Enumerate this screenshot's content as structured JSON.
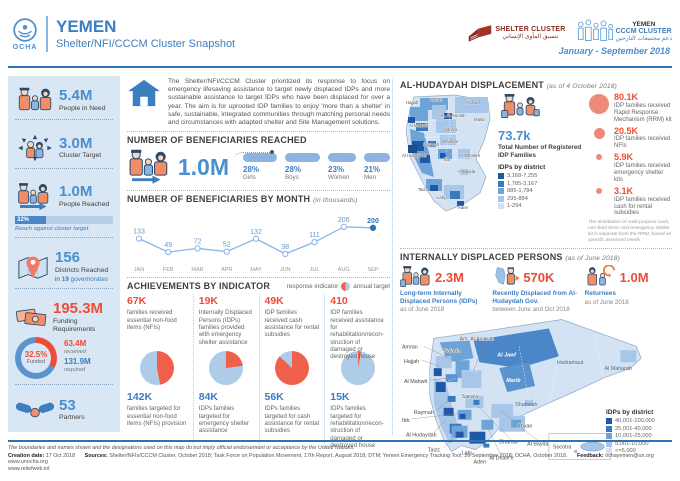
{
  "header": {
    "ocha": "OCHA",
    "title": "YEMEN",
    "subtitle": "Shelter/NFI/CCCM Cluster Snapshot",
    "period": "January - September 2018",
    "shelter": {
      "name": "SHELTER CLUSTER",
      "arabic": "تنسيق المأوى الإنساني"
    },
    "cccm": {
      "country": "YEMEN",
      "name": "CCCM CLUSTER",
      "arabic": "دعم مجتمعات النازحين"
    }
  },
  "sidebar": {
    "need": {
      "value": "5.4M",
      "label": "People in Need"
    },
    "target": {
      "value": "3.0M",
      "label": "Cluster Target"
    },
    "reached": {
      "value": "1.0M",
      "label": "People Reached",
      "pct": 32,
      "pct_label": "32%",
      "note": "Reach against cluster target"
    },
    "districts": {
      "value": "156",
      "label": "Districts Reached",
      "sub_pre": "in",
      "sub_num": "19",
      "sub_post": "governorates"
    },
    "funding": {
      "value": "195.3M",
      "label": "Funding Requirements",
      "pct": 32.5,
      "pct_label": "32.5%",
      "funded_label": "Funded",
      "received": "63.4M",
      "received_label": "received",
      "required": "131.9M",
      "required_label": "required"
    },
    "partners": {
      "value": "53",
      "label": "Partners"
    }
  },
  "intro": {
    "text": "The Shelter/NFI/CCCM Cluster prioritized its response to focus on emergency lifesaving assistance to target newly displaced IDPs and more sustainable assistance to target IDPs who have been displaced for over a year. The aim is for uprooted IDP families to enjoy 'more than a shelter' in safe, sustainable, integrated communities through matching personal needs and circumstances with adapted shelter and Site Management solutions."
  },
  "reached": {
    "title": "NUMBER OF BENEFICIARIES REACHED",
    "total": "1.0M",
    "groups": [
      {
        "pct": "28%",
        "label": "Girls",
        "w": 34
      },
      {
        "pct": "28%",
        "label": "Boys",
        "w": 35
      },
      {
        "pct": "23%",
        "label": "Women",
        "w": 28
      },
      {
        "pct": "21%",
        "label": "Men",
        "w": 26
      }
    ]
  },
  "by_month": {
    "title": "NUMBER OF BENEFICIARIES BY MONTH",
    "note": "(in thousands)"
  },
  "achievements": {
    "title": "ACHIEVEMENTS BY INDICATOR",
    "legend_left": "response indicator",
    "legend_right": "annual target",
    "indicators": [
      {
        "reached": "67K",
        "reached_desc": "families received essential non-food items (NFIs)",
        "pie_pct": 47,
        "target": "142K",
        "target_desc": "families targeted for essential non-food items (NFIs) provision"
      },
      {
        "reached": "19K",
        "reached_desc": "Internally Displaced Persons (IDPs) families provided with emergency shelter assistance",
        "pie_pct": 23,
        "target": "84K",
        "target_desc": "IDPs families targeted for emergency shelter assistance"
      },
      {
        "reached": "49K",
        "reached_desc": "IDP families received cash assistance for rental subsidies",
        "pie_pct": 87,
        "target": "56K",
        "target_desc": "IDPs families targeted for cash assistance for rental subsidies"
      },
      {
        "reached": "410",
        "reached_desc": "IDP families received assistance for rehabilitation/recon-struction of damaged or destroyed house",
        "pie_pct": 3,
        "target": "15K",
        "target_desc": "IDPs families targeted for rehabilitation/recon-struction of damaged or destroyed house"
      }
    ]
  },
  "hudaydah": {
    "title": "AL-HUDAYDAH DISPLACEMENT",
    "note": "(as of 4 October 2018)",
    "total_value": "73.7k",
    "total_label": "Total Number of Registered IDP Families",
    "legend_title": "IDPs by district",
    "legend": [
      {
        "range": "3,168-7,255"
      },
      {
        "range": "1,785-3,167"
      },
      {
        "range": "885-1,784"
      },
      {
        "range": "295-884"
      },
      {
        "range": "1-294"
      }
    ],
    "stats": [
      {
        "value": "80.1K",
        "desc": "IDP families received Rapid Response Mechanism (RRM) kit",
        "size": 20
      },
      {
        "value": "20.5K",
        "desc": "IDP families received NFIs",
        "size": 11
      },
      {
        "value": "5.9K",
        "desc": "IDP families received emergency shelter kits",
        "size": 6
      },
      {
        "value": "3.1K",
        "desc": "IDP families received cash for rental subsidies",
        "size": 6
      }
    ],
    "footnote": "The distribution of multi-purpose cash, non-food items and emergency shelter kit is separate from the RRM, based on specific assessed needs.",
    "map_labels": [
      "Amran",
      "Hajjah",
      "Al Jawf",
      "Am. Al Asimah",
      "Marib",
      "Al Mahwit",
      "Sana'a",
      "Raymah",
      "Dhamar",
      "Al Hudaydah",
      "Al Dhale'e",
      "Ibb",
      "Al Bayda",
      "Taizz",
      "Lahj",
      "Aden"
    ]
  },
  "idps": {
    "title": "INTERNALLY DISPLACED PERSONS",
    "note": "(as of June 2018)",
    "items": [
      {
        "value": "2.3M",
        "label": "Long-term Internally Displaced Persons (IDPs)",
        "sub": "as of June 2018"
      },
      {
        "value": "570K",
        "label": "Recently Displaced from Al-Hudaydah Gov.",
        "sub": "between June and Oct 2018"
      },
      {
        "value": "1.0M",
        "label": "Returnees",
        "sub": "as of June 2018"
      }
    ]
  },
  "big_map": {
    "legend_title": "IDPs by district",
    "legend": [
      {
        "range": "40,001-100,000"
      },
      {
        "range": "25,001-40,000"
      },
      {
        "range": "10,001-25,000"
      },
      {
        "range": "5,001-10,000"
      },
      {
        "range": "<=5,000"
      }
    ],
    "labels": [
      "Amran",
      "Hajjah",
      "Sa'ada",
      "Am. Al Asimah",
      "Al Jawf",
      "Marib",
      "Hadramaut",
      "Al Maharah",
      "Al Mahwit",
      "Sana'a",
      "Shabwah",
      "Raymah",
      "Ibb",
      "Al Hudaydah",
      "Taizz",
      "Lahj",
      "Aden",
      "Al Dhale'e",
      "Dhamar",
      "Al Bayda",
      "Abyan",
      "Socotra"
    ]
  },
  "footer": {
    "disclaimer": "The boundaries and names shown and the designations used on this map do not imply official endorsement or acceptance by the United Nations.",
    "creation_label": "Creation date:",
    "creation": "17 Oct 2018",
    "sources_label": "Sources:",
    "sources": "Shelter/NFIs/CCCM Cluster, October 2018; Task Force on Population Movement, 17th Report, August 2018; DTM; Yemen Emergency Tracking Tool, 26 September 2018; OCHA, October 2018.",
    "feedback_label": "Feedback:",
    "feedback": "ochayemen@un.org",
    "site": "www.unocha.org",
    "relief": "www.reliefweb.int"
  },
  "colors": {
    "accent_blue": "#2e74b5",
    "value_blue": "#4a8fce",
    "red": "#ee4c35",
    "salmon": "#f08a78",
    "pie_red": "#f0604a",
    "pie_blue": "#aecbe8",
    "donut_blue": "#5b93cf",
    "sidebar_bg": "#d9e6f3",
    "map_scale": [
      "#2057a7",
      "#3b79bd",
      "#6ea3d8",
      "#a7c6e8",
      "#d3e3f4"
    ]
  },
  "chart_data": [
    {
      "type": "line",
      "title": "NUMBER OF BENEFICIARIES BY MONTH (in thousands)",
      "x": [
        "JAN",
        "FEB",
        "MAR",
        "APR",
        "MAY",
        "JUN",
        "JUL",
        "AUG",
        "SEP"
      ],
      "values": [
        133,
        49,
        72,
        52,
        132,
        38,
        111,
        206,
        200
      ],
      "ylim": [
        0,
        230
      ],
      "grid": false,
      "legend_position": "none",
      "highlight_last": true
    },
    {
      "type": "pie",
      "title": "Funding status",
      "labels": [
        "Funded (63.4M received)",
        "Unmet (131.9M required)"
      ],
      "values": [
        32.5,
        67.5
      ]
    },
    {
      "type": "pie",
      "title": "Achievements by indicator: response vs annual target",
      "series": [
        {
          "name": "Essential NFIs",
          "reached": 67000,
          "target": 142000
        },
        {
          "name": "Emergency shelter assistance",
          "reached": 19000,
          "target": 84000
        },
        {
          "name": "Cash for rental subsidies",
          "reached": 49000,
          "target": 56000
        },
        {
          "name": "Rehabilitation/reconstruction",
          "reached": 410,
          "target": 15000
        }
      ]
    },
    {
      "type": "bar",
      "title": "Beneficiaries reached by group (%)",
      "categories": [
        "Girls",
        "Boys",
        "Women",
        "Men"
      ],
      "values": [
        28,
        28,
        23,
        21
      ]
    }
  ]
}
